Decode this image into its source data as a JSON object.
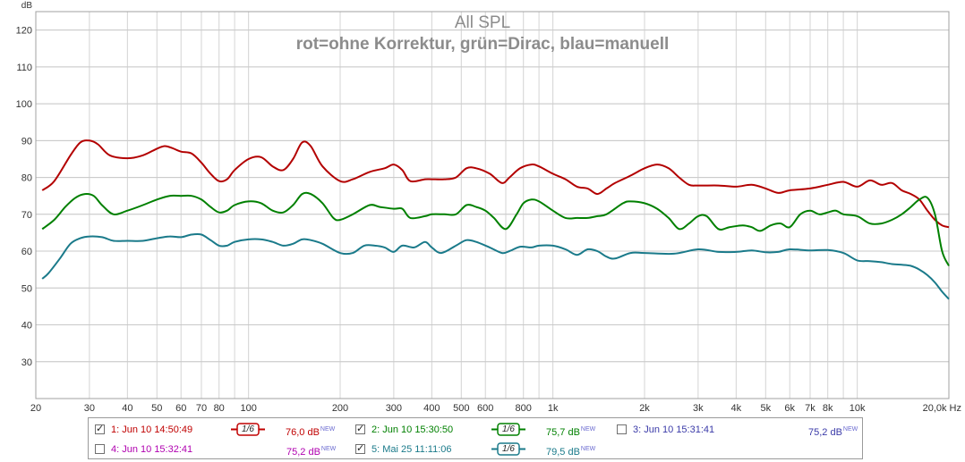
{
  "chart_data": {
    "type": "line",
    "title": "All SPL",
    "subtitle": "rot=ohne Korrektur, grün=Dirac, blau=manuell",
    "ylabel": "dB",
    "xlabel": "Hz",
    "xscale": "log",
    "xlim": [
      20,
      20000
    ],
    "ylim": [
      20,
      125
    ],
    "grid": true,
    "yticks": [
      30,
      40,
      50,
      60,
      70,
      80,
      90,
      100,
      110,
      120
    ],
    "xticks": [
      {
        "v": 20,
        "t": "20"
      },
      {
        "v": 30,
        "t": "30"
      },
      {
        "v": 40,
        "t": "40"
      },
      {
        "v": 50,
        "t": "50"
      },
      {
        "v": 60,
        "t": "60"
      },
      {
        "v": 70,
        "t": "70"
      },
      {
        "v": 80,
        "t": "80"
      },
      {
        "v": 100,
        "t": "100"
      },
      {
        "v": 200,
        "t": "200"
      },
      {
        "v": 300,
        "t": "300"
      },
      {
        "v": 400,
        "t": "400"
      },
      {
        "v": 500,
        "t": "500"
      },
      {
        "v": 600,
        "t": "600"
      },
      {
        "v": 800,
        "t": "800"
      },
      {
        "v": 1000,
        "t": "1k"
      },
      {
        "v": 2000,
        "t": "2k"
      },
      {
        "v": 3000,
        "t": "3k"
      },
      {
        "v": 4000,
        "t": "4k"
      },
      {
        "v": 5000,
        "t": "5k"
      },
      {
        "v": 6000,
        "t": "6k"
      },
      {
        "v": 7000,
        "t": "7k"
      },
      {
        "v": 8000,
        "t": "8k"
      },
      {
        "v": 10000,
        "t": "10k"
      },
      {
        "v": 20000,
        "t": "20,0k Hz"
      }
    ],
    "series": [
      {
        "color": "#b30000",
        "points": [
          [
            21,
            76.5
          ],
          [
            23,
            79
          ],
          [
            26,
            86
          ],
          [
            28,
            89.5
          ],
          [
            30,
            90
          ],
          [
            32,
            89
          ],
          [
            35,
            86
          ],
          [
            40,
            85.2
          ],
          [
            45,
            86
          ],
          [
            50,
            87.8
          ],
          [
            53,
            88.5
          ],
          [
            56,
            88
          ],
          [
            60,
            87
          ],
          [
            65,
            86.5
          ],
          [
            70,
            84
          ],
          [
            75,
            81
          ],
          [
            80,
            79
          ],
          [
            85,
            79.5
          ],
          [
            90,
            82
          ],
          [
            100,
            85
          ],
          [
            110,
            85.5
          ],
          [
            120,
            83
          ],
          [
            130,
            82
          ],
          [
            140,
            85
          ],
          [
            150,
            89.5
          ],
          [
            160,
            88.5
          ],
          [
            175,
            83
          ],
          [
            200,
            79
          ],
          [
            220,
            79.5
          ],
          [
            250,
            81.5
          ],
          [
            280,
            82.5
          ],
          [
            300,
            83.5
          ],
          [
            320,
            82
          ],
          [
            340,
            79
          ],
          [
            380,
            79.5
          ],
          [
            400,
            79.5
          ],
          [
            440,
            79.5
          ],
          [
            480,
            80
          ],
          [
            520,
            82.5
          ],
          [
            560,
            82.5
          ],
          [
            620,
            81
          ],
          [
            680,
            78.5
          ],
          [
            720,
            80
          ],
          [
            780,
            82.5
          ],
          [
            850,
            83.5
          ],
          [
            900,
            83
          ],
          [
            1000,
            81
          ],
          [
            1100,
            79.5
          ],
          [
            1200,
            77.5
          ],
          [
            1300,
            77
          ],
          [
            1400,
            75.5
          ],
          [
            1500,
            77
          ],
          [
            1600,
            78.5
          ],
          [
            1800,
            80.5
          ],
          [
            2000,
            82.5
          ],
          [
            2200,
            83.5
          ],
          [
            2400,
            82.5
          ],
          [
            2600,
            80
          ],
          [
            2800,
            78
          ],
          [
            3000,
            77.8
          ],
          [
            3500,
            77.8
          ],
          [
            4000,
            77.5
          ],
          [
            4500,
            78
          ],
          [
            5000,
            77
          ],
          [
            5500,
            75.8
          ],
          [
            6000,
            76.5
          ],
          [
            7000,
            77
          ],
          [
            8000,
            78
          ],
          [
            9000,
            78.8
          ],
          [
            10000,
            77.5
          ],
          [
            11000,
            79.2
          ],
          [
            12000,
            78
          ],
          [
            13000,
            78.5
          ],
          [
            14000,
            76.5
          ],
          [
            15000,
            75.5
          ],
          [
            16000,
            74
          ],
          [
            17000,
            71
          ],
          [
            18000,
            68.5
          ],
          [
            19000,
            67
          ],
          [
            20000,
            66.5
          ]
        ]
      },
      {
        "color": "#008000",
        "points": [
          [
            21,
            66
          ],
          [
            23,
            68.5
          ],
          [
            25,
            72
          ],
          [
            27,
            74.5
          ],
          [
            29,
            75.5
          ],
          [
            31,
            75
          ],
          [
            33,
            72.5
          ],
          [
            36,
            70
          ],
          [
            40,
            71
          ],
          [
            45,
            72.5
          ],
          [
            50,
            74
          ],
          [
            55,
            75
          ],
          [
            60,
            75
          ],
          [
            65,
            75
          ],
          [
            70,
            74
          ],
          [
            75,
            72
          ],
          [
            80,
            70.5
          ],
          [
            85,
            71
          ],
          [
            90,
            72.5
          ],
          [
            100,
            73.5
          ],
          [
            110,
            73
          ],
          [
            120,
            71
          ],
          [
            130,
            70.5
          ],
          [
            140,
            72.5
          ],
          [
            150,
            75.5
          ],
          [
            160,
            75.5
          ],
          [
            175,
            73
          ],
          [
            190,
            69
          ],
          [
            200,
            68.5
          ],
          [
            220,
            70
          ],
          [
            250,
            72.5
          ],
          [
            270,
            72
          ],
          [
            300,
            71.5
          ],
          [
            320,
            71.5
          ],
          [
            340,
            69
          ],
          [
            380,
            69.5
          ],
          [
            400,
            70
          ],
          [
            440,
            70
          ],
          [
            480,
            70
          ],
          [
            520,
            72.5
          ],
          [
            560,
            72
          ],
          [
            600,
            71
          ],
          [
            640,
            69
          ],
          [
            700,
            66
          ],
          [
            760,
            70
          ],
          [
            800,
            73
          ],
          [
            850,
            74
          ],
          [
            900,
            73.5
          ],
          [
            1000,
            71
          ],
          [
            1100,
            69
          ],
          [
            1200,
            69
          ],
          [
            1300,
            69
          ],
          [
            1400,
            69.5
          ],
          [
            1500,
            70
          ],
          [
            1700,
            73
          ],
          [
            1800,
            73.5
          ],
          [
            2000,
            73
          ],
          [
            2200,
            71.5
          ],
          [
            2400,
            69
          ],
          [
            2600,
            66
          ],
          [
            2800,
            67.5
          ],
          [
            3000,
            69.5
          ],
          [
            3200,
            69.5
          ],
          [
            3500,
            66
          ],
          [
            3800,
            66.5
          ],
          [
            4200,
            67
          ],
          [
            4500,
            66.5
          ],
          [
            4800,
            65.5
          ],
          [
            5200,
            67
          ],
          [
            5600,
            67.5
          ],
          [
            6000,
            66.5
          ],
          [
            6500,
            70
          ],
          [
            7000,
            71
          ],
          [
            7500,
            70
          ],
          [
            8000,
            70.5
          ],
          [
            8500,
            71
          ],
          [
            9000,
            70
          ],
          [
            10000,
            69.5
          ],
          [
            11000,
            67.5
          ],
          [
            12000,
            67.5
          ],
          [
            13000,
            68.5
          ],
          [
            14000,
            70
          ],
          [
            15000,
            72
          ],
          [
            16000,
            74
          ],
          [
            17000,
            74.5
          ],
          [
            18000,
            70
          ],
          [
            19000,
            60
          ],
          [
            20000,
            56
          ]
        ]
      },
      {
        "color": "#1a7a8a",
        "points": [
          [
            21,
            52.5
          ],
          [
            22,
            54
          ],
          [
            24,
            58
          ],
          [
            26,
            62
          ],
          [
            28,
            63.5
          ],
          [
            30,
            64
          ],
          [
            33,
            63.8
          ],
          [
            36,
            62.8
          ],
          [
            40,
            62.8
          ],
          [
            45,
            62.8
          ],
          [
            50,
            63.5
          ],
          [
            55,
            64
          ],
          [
            60,
            63.8
          ],
          [
            65,
            64.5
          ],
          [
            70,
            64.5
          ],
          [
            75,
            63
          ],
          [
            80,
            61.5
          ],
          [
            85,
            61.5
          ],
          [
            90,
            62.5
          ],
          [
            100,
            63.2
          ],
          [
            110,
            63.2
          ],
          [
            120,
            62.5
          ],
          [
            130,
            61.5
          ],
          [
            140,
            62
          ],
          [
            150,
            63.2
          ],
          [
            160,
            63
          ],
          [
            175,
            62
          ],
          [
            200,
            59.5
          ],
          [
            220,
            59.5
          ],
          [
            240,
            61.5
          ],
          [
            260,
            61.5
          ],
          [
            280,
            61
          ],
          [
            300,
            59.8
          ],
          [
            320,
            61.5
          ],
          [
            350,
            61
          ],
          [
            380,
            62.5
          ],
          [
            400,
            61
          ],
          [
            430,
            59.5
          ],
          [
            480,
            61.5
          ],
          [
            520,
            63
          ],
          [
            560,
            62.5
          ],
          [
            620,
            61
          ],
          [
            680,
            59.5
          ],
          [
            720,
            60
          ],
          [
            780,
            61.2
          ],
          [
            850,
            61
          ],
          [
            900,
            61.5
          ],
          [
            1000,
            61.5
          ],
          [
            1100,
            60.5
          ],
          [
            1200,
            59
          ],
          [
            1300,
            60.5
          ],
          [
            1400,
            60
          ],
          [
            1500,
            58.5
          ],
          [
            1600,
            58
          ],
          [
            1800,
            59.5
          ],
          [
            2000,
            59.5
          ],
          [
            2500,
            59.3
          ],
          [
            3000,
            60.5
          ],
          [
            3500,
            59.8
          ],
          [
            4000,
            59.8
          ],
          [
            4500,
            60.2
          ],
          [
            5000,
            59.7
          ],
          [
            5500,
            59.8
          ],
          [
            6000,
            60.5
          ],
          [
            7000,
            60.2
          ],
          [
            8000,
            60.3
          ],
          [
            9000,
            59.5
          ],
          [
            10000,
            57.5
          ],
          [
            11000,
            57.3
          ],
          [
            12000,
            57
          ],
          [
            13000,
            56.5
          ],
          [
            14000,
            56.3
          ],
          [
            15000,
            56
          ],
          [
            16000,
            55
          ],
          [
            17000,
            53.5
          ],
          [
            18000,
            51.5
          ],
          [
            19000,
            49
          ],
          [
            20000,
            47
          ]
        ]
      }
    ]
  },
  "legend": {
    "entries": [
      {
        "label": "1: Jun 10 14:50:49",
        "checked": true,
        "check_glyph": "✓",
        "color": "#c00000",
        "smoothing": "1/6",
        "level": "76,0 dB",
        "badge": "NEW"
      },
      {
        "label": "2: Jun 10 15:30:50",
        "checked": true,
        "check_glyph": "✓",
        "color": "#008000",
        "smoothing": "1/6",
        "level": "75,7 dB",
        "badge": "NEW"
      },
      {
        "label": "3: Jun 10 15:31:41",
        "checked": false,
        "check_glyph": "",
        "color": "#3a3aa8",
        "smoothing": "",
        "level": "75,2 dB",
        "badge": "NEW"
      },
      {
        "label": "4: Jun 10 15:32:41",
        "checked": false,
        "check_glyph": "",
        "color": "#b000b0",
        "smoothing": "",
        "level": "75,2 dB",
        "badge": "NEW"
      },
      {
        "label": "5: Mai 25 11:11:06",
        "checked": true,
        "check_glyph": "✓",
        "color": "#1a7a8a",
        "smoothing": "1/6",
        "level": "79,5 dB",
        "badge": "NEW"
      }
    ]
  }
}
